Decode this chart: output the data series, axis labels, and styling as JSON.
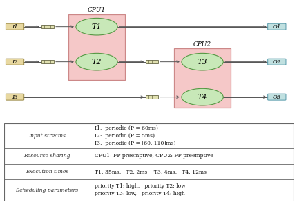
{
  "cpu1_label": "CPU1",
  "cpu2_label": "CPU2",
  "cpu_box_color": "#f5c8c8",
  "task_circle_color": "#c8e8b8",
  "input_box_color": "#e8d8a0",
  "output_box_color": "#c0e0e0",
  "line_color": "#555555",
  "table_rows": [
    {
      "label": "Input streams",
      "value": "I1:  periodic (P = 60ms)\nI2:  periodic (P = 5ms)\nI3:  periodic (P = [60..110]ms)"
    },
    {
      "label": "Resource sharing",
      "value": "CPU1: FP preemptive, CPU2: FP preemptive"
    },
    {
      "label": "Execution times",
      "value": "T1: 35ms,   T2: 2ms,   T3: 4ms,   T4: 12ms"
    },
    {
      "label": "Scheduling parameters",
      "value": "priority T1: high,   priority T2: low\npriority T3: low,   priority T4: high"
    }
  ]
}
